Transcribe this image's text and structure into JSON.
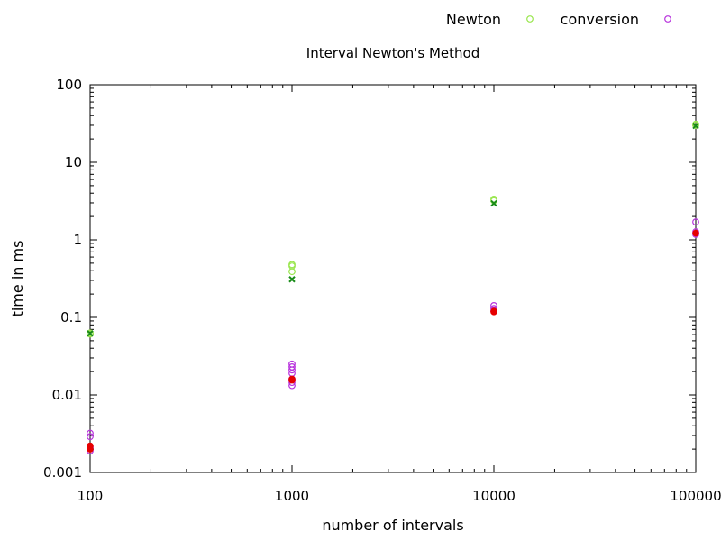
{
  "chart_data": {
    "type": "scatter",
    "title": "Interval Newton's Method",
    "xlabel": "number of intervals",
    "ylabel": "time in ms",
    "x_scale": "log",
    "y_scale": "log",
    "xlim": [
      100,
      100000
    ],
    "ylim": [
      0.001,
      100
    ],
    "x_ticks": [
      100,
      1000,
      10000,
      100000
    ],
    "x_tick_labels": [
      "100",
      "1000",
      "10000",
      "100000"
    ],
    "y_ticks": [
      0.001,
      0.01,
      0.1,
      1,
      10,
      100
    ],
    "y_tick_labels": [
      "0.001",
      "0.01",
      "0.1",
      "1",
      "10",
      "100"
    ],
    "grid": false,
    "legend_position": "top-right",
    "series": [
      {
        "name": "Newton",
        "color": "#99e64d",
        "marker": "circle",
        "points": [
          [
            100,
            0.063
          ],
          [
            100,
            0.061
          ],
          [
            1000,
            0.48
          ],
          [
            1000,
            0.46
          ],
          [
            1000,
            0.39
          ],
          [
            10000,
            3.35
          ],
          [
            10000,
            3.2
          ],
          [
            100000,
            31
          ],
          [
            100000,
            30
          ]
        ]
      },
      {
        "name": "conversion",
        "color": "#b833dd",
        "marker": "circle",
        "points": [
          [
            100,
            0.0032
          ],
          [
            100,
            0.0029
          ],
          [
            100,
            0.0021
          ],
          [
            100,
            0.0019
          ],
          [
            1000,
            0.025
          ],
          [
            1000,
            0.023
          ],
          [
            1000,
            0.021
          ],
          [
            1000,
            0.019
          ],
          [
            1000,
            0.016
          ],
          [
            1000,
            0.0145
          ],
          [
            1000,
            0.0132
          ],
          [
            10000,
            0.142
          ],
          [
            10000,
            0.13
          ],
          [
            10000,
            0.122
          ],
          [
            100000,
            1.7
          ],
          [
            100000,
            1.27
          ],
          [
            100000,
            1.18
          ]
        ]
      },
      {
        "color": "#1a8c1a",
        "marker": "cross",
        "points": [
          [
            100,
            0.062
          ],
          [
            1000,
            0.31
          ],
          [
            10000,
            2.95
          ],
          [
            100000,
            29.5
          ]
        ]
      },
      {
        "color": "#e60000",
        "marker": "filled-circle",
        "points": [
          [
            100,
            0.0022
          ],
          [
            100,
            0.002
          ],
          [
            1000,
            0.016
          ],
          [
            1000,
            0.0155
          ],
          [
            10000,
            0.12
          ],
          [
            10000,
            0.118
          ],
          [
            100000,
            1.22
          ]
        ]
      }
    ]
  }
}
